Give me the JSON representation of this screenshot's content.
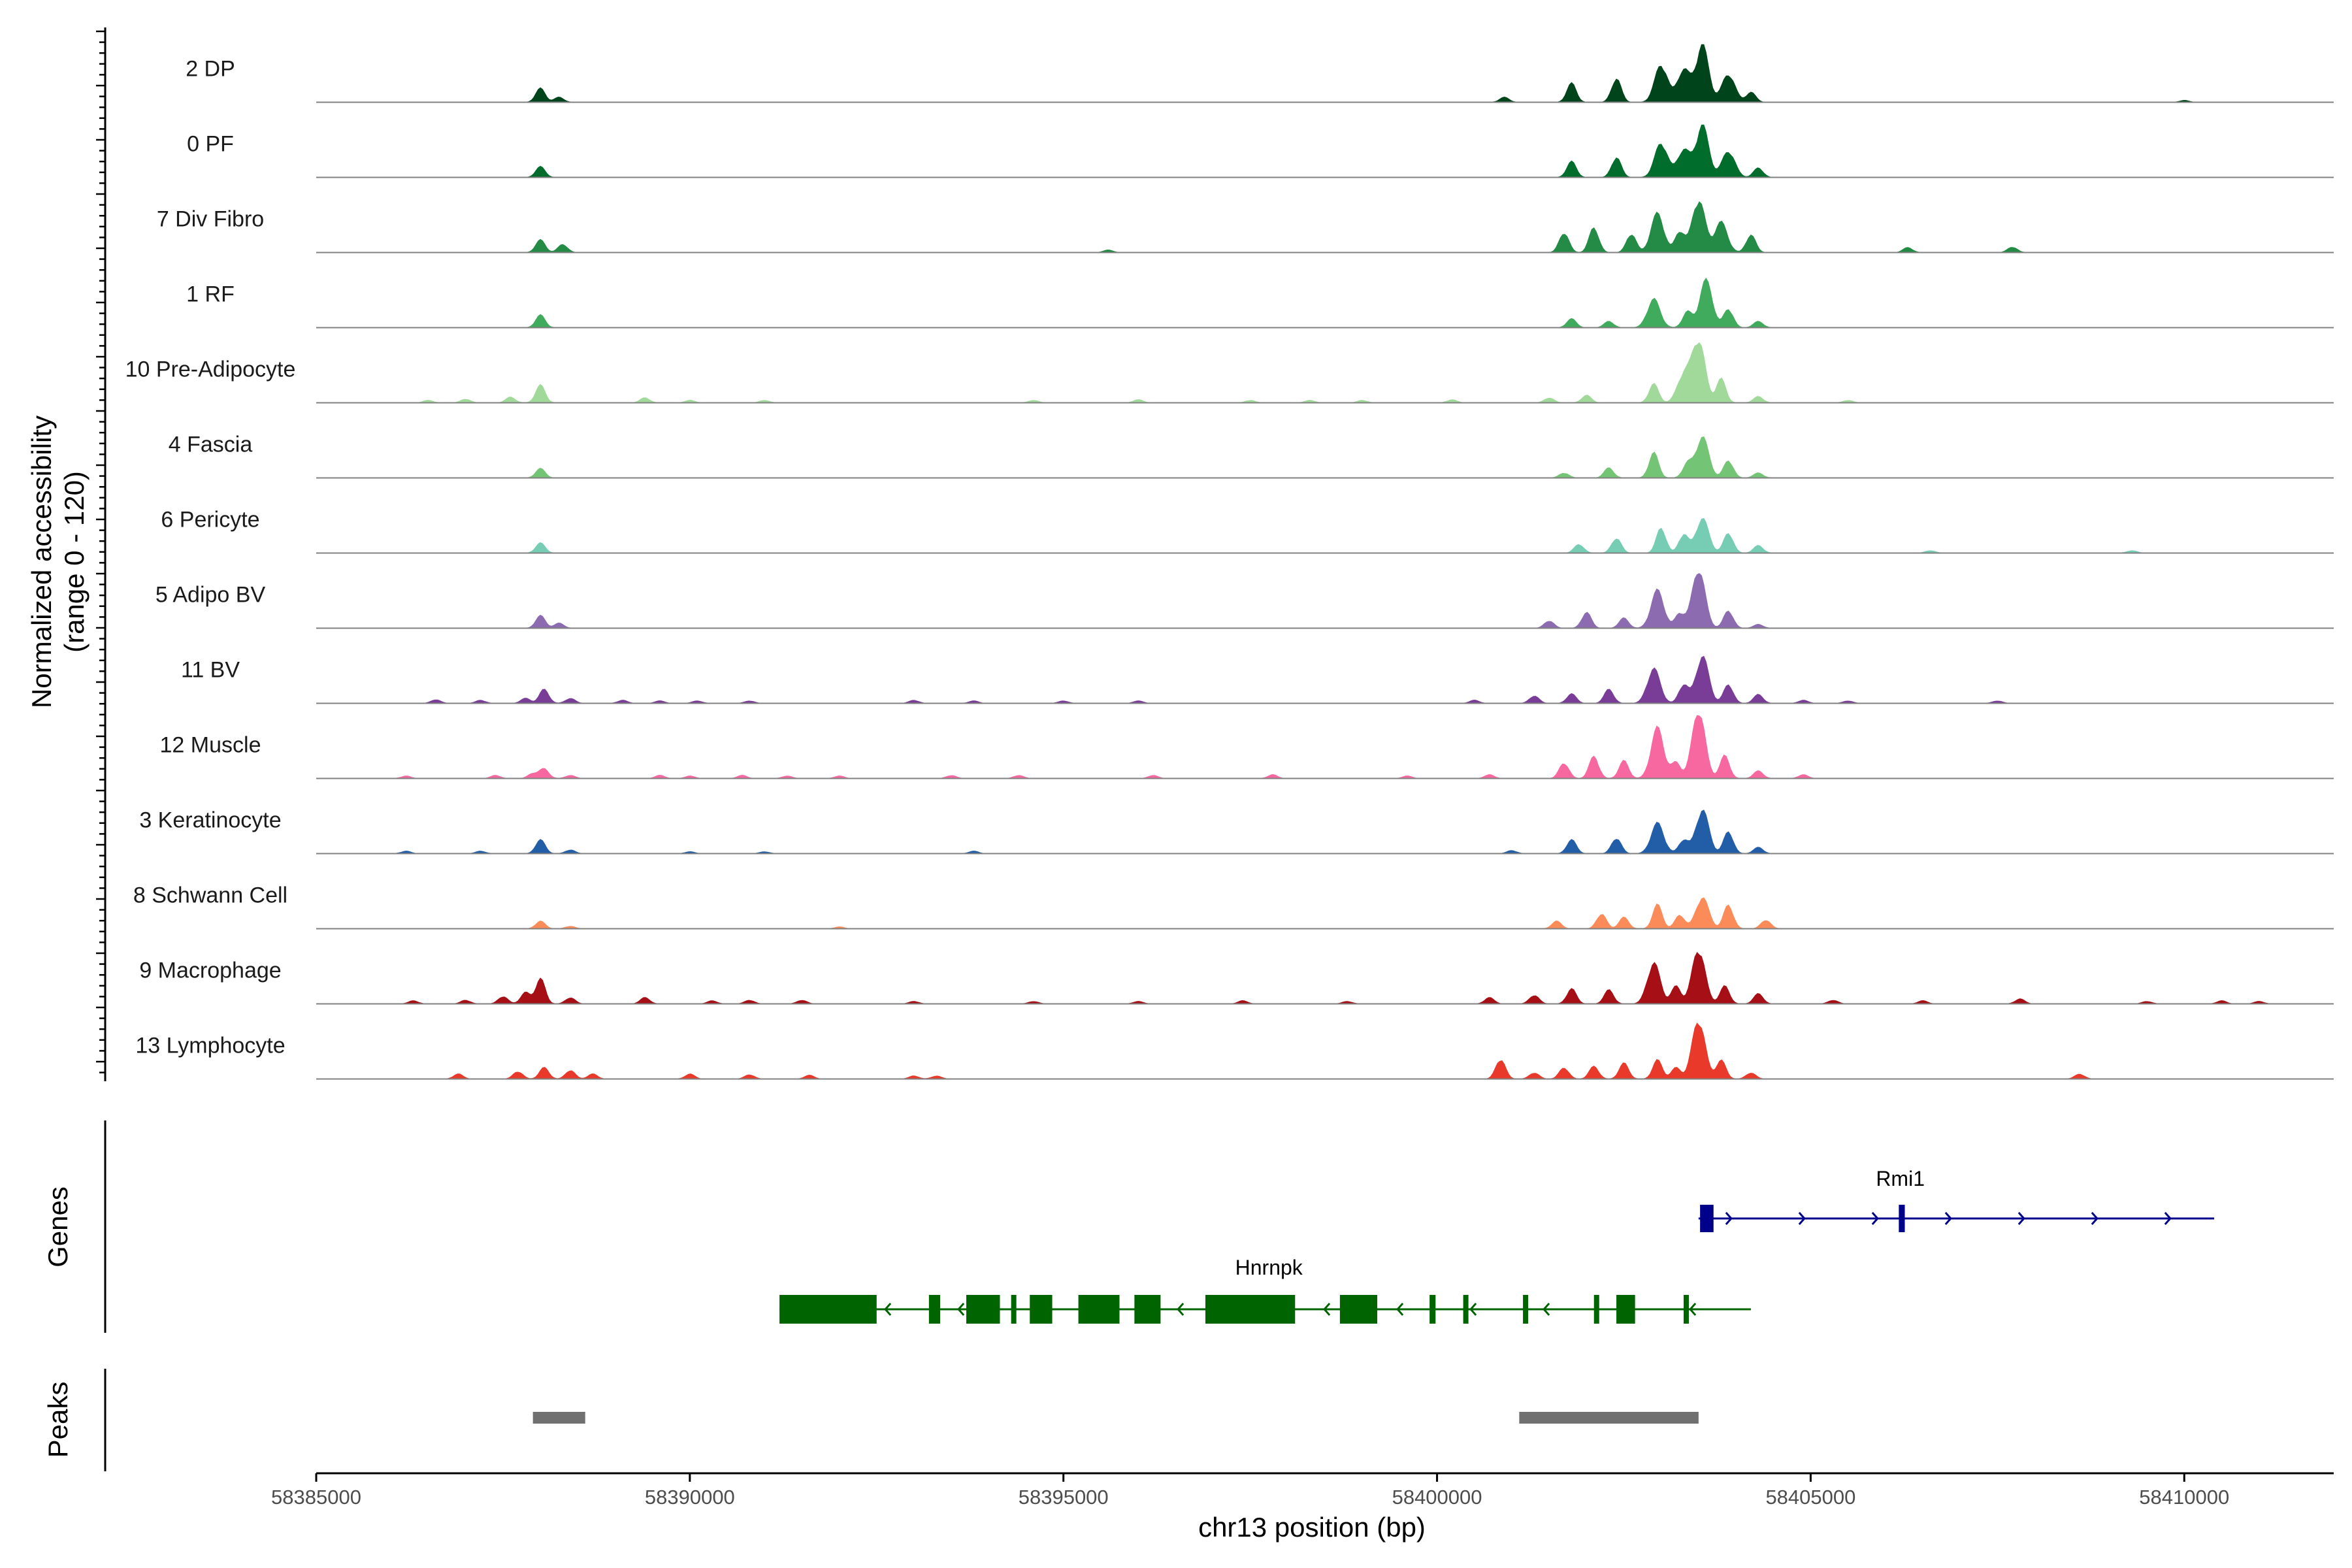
{
  "chart_data": {
    "type": "area",
    "title": "",
    "chromosome": "chr13",
    "xlabel": "chr13 position (bp)",
    "ylabel": "Normalized accessibility",
    "ylabel_range": "(range 0 - 120)",
    "xlim": [
      58385000,
      58412000
    ],
    "ylim": [
      0,
      120
    ],
    "x_ticks": [
      58385000,
      58390000,
      58395000,
      58400000,
      58405000,
      58410000
    ],
    "x_tick_labels": [
      "58385000",
      "58390000",
      "58395000",
      "58400000",
      "58405000",
      "58410000"
    ],
    "series": [
      {
        "name": "2 DP",
        "color": "#00441b",
        "peaks": [
          [
            58388000,
            22
          ],
          [
            58388250,
            8
          ],
          [
            58400900,
            8
          ],
          [
            58401800,
            30
          ],
          [
            58402400,
            38
          ],
          [
            58403000,
            60
          ],
          [
            58403300,
            52
          ],
          [
            58403550,
            90
          ],
          [
            58403900,
            45
          ],
          [
            58404200,
            16
          ],
          [
            58410000,
            3
          ]
        ]
      },
      {
        "name": "0 PF",
        "color": "#006d2c",
        "peaks": [
          [
            58388000,
            17
          ],
          [
            58401800,
            25
          ],
          [
            58402400,
            32
          ],
          [
            58403000,
            55
          ],
          [
            58403300,
            44
          ],
          [
            58403550,
            82
          ],
          [
            58403900,
            42
          ],
          [
            58404300,
            15
          ]
        ]
      },
      {
        "name": "7 Div Fibro",
        "color": "#238b45",
        "peaks": [
          [
            58388000,
            20
          ],
          [
            58388300,
            13
          ],
          [
            58395600,
            4
          ],
          [
            58401700,
            32
          ],
          [
            58402100,
            40
          ],
          [
            58402600,
            30
          ],
          [
            58402950,
            62
          ],
          [
            58403250,
            34
          ],
          [
            58403500,
            85
          ],
          [
            58403800,
            48
          ],
          [
            58404200,
            28
          ],
          [
            58406300,
            8
          ],
          [
            58407700,
            9
          ]
        ]
      },
      {
        "name": "1 RF",
        "color": "#41ab5d",
        "peaks": [
          [
            58388000,
            20
          ],
          [
            58401800,
            14
          ],
          [
            58402300,
            10
          ],
          [
            58402900,
            45
          ],
          [
            58403350,
            25
          ],
          [
            58403600,
            75
          ],
          [
            58403900,
            30
          ],
          [
            58404300,
            10
          ]
        ]
      },
      {
        "name": "10 Pre-Adipocyte",
        "color": "#a1d99b",
        "peaks": [
          [
            58386500,
            4
          ],
          [
            58387000,
            6
          ],
          [
            58387600,
            9
          ],
          [
            58388000,
            28
          ],
          [
            58389400,
            8
          ],
          [
            58390000,
            4
          ],
          [
            58391000,
            4
          ],
          [
            58394600,
            4
          ],
          [
            58396000,
            5
          ],
          [
            58397500,
            4
          ],
          [
            58398300,
            4
          ],
          [
            58399000,
            4
          ],
          [
            58400200,
            5
          ],
          [
            58401500,
            8
          ],
          [
            58402000,
            12
          ],
          [
            58402900,
            30
          ],
          [
            58403300,
            45
          ],
          [
            58403500,
            100
          ],
          [
            58403800,
            38
          ],
          [
            58404300,
            10
          ],
          [
            58405500,
            4
          ]
        ]
      },
      {
        "name": "4 Fascia",
        "color": "#74c476",
        "peaks": [
          [
            58388000,
            15
          ],
          [
            58401700,
            8
          ],
          [
            58402300,
            16
          ],
          [
            58402900,
            40
          ],
          [
            58403350,
            22
          ],
          [
            58403550,
            65
          ],
          [
            58403900,
            28
          ],
          [
            58404300,
            8
          ]
        ]
      },
      {
        "name": "6 Pericyte",
        "color": "#76cdb4",
        "peaks": [
          [
            58388000,
            16
          ],
          [
            58401900,
            14
          ],
          [
            58402400,
            24
          ],
          [
            58403000,
            40
          ],
          [
            58403300,
            30
          ],
          [
            58403550,
            55
          ],
          [
            58403900,
            32
          ],
          [
            58404300,
            12
          ],
          [
            58406600,
            4
          ],
          [
            58409300,
            4
          ]
        ]
      },
      {
        "name": "5 Adipo BV",
        "color": "#8c6bb1",
        "peaks": [
          [
            58388000,
            20
          ],
          [
            58388250,
            8
          ],
          [
            58401500,
            12
          ],
          [
            58402000,
            25
          ],
          [
            58402500,
            16
          ],
          [
            58402950,
            60
          ],
          [
            58403250,
            24
          ],
          [
            58403500,
            95
          ],
          [
            58403900,
            28
          ],
          [
            58404300,
            6
          ]
        ]
      },
      {
        "name": "11 BV",
        "color": "#7a3d97",
        "peaks": [
          [
            58386600,
            6
          ],
          [
            58387200,
            5
          ],
          [
            58387800,
            8
          ],
          [
            58388050,
            22
          ],
          [
            58388400,
            8
          ],
          [
            58389100,
            5
          ],
          [
            58389600,
            4
          ],
          [
            58390100,
            4
          ],
          [
            58390800,
            4
          ],
          [
            58393000,
            5
          ],
          [
            58393800,
            4
          ],
          [
            58395000,
            4
          ],
          [
            58396000,
            4
          ],
          [
            58400500,
            5
          ],
          [
            58401300,
            12
          ],
          [
            58401800,
            15
          ],
          [
            58402300,
            22
          ],
          [
            58402900,
            55
          ],
          [
            58403300,
            30
          ],
          [
            58403550,
            75
          ],
          [
            58403900,
            30
          ],
          [
            58404300,
            14
          ],
          [
            58404900,
            5
          ],
          [
            58405500,
            4
          ],
          [
            58407500,
            4
          ]
        ]
      },
      {
        "name": "12 Muscle",
        "color": "#f768a1",
        "peaks": [
          [
            58386200,
            4
          ],
          [
            58387400,
            5
          ],
          [
            58387900,
            8
          ],
          [
            58388050,
            15
          ],
          [
            58388400,
            5
          ],
          [
            58389600,
            5
          ],
          [
            58390000,
            4
          ],
          [
            58390700,
            5
          ],
          [
            58391300,
            4
          ],
          [
            58392000,
            4
          ],
          [
            58393500,
            5
          ],
          [
            58394400,
            5
          ],
          [
            58396200,
            5
          ],
          [
            58397800,
            6
          ],
          [
            58399600,
            4
          ],
          [
            58400700,
            6
          ],
          [
            58401700,
            25
          ],
          [
            58402100,
            35
          ],
          [
            58402500,
            28
          ],
          [
            58402950,
            80
          ],
          [
            58403200,
            25
          ],
          [
            58403500,
            110
          ],
          [
            58403850,
            36
          ],
          [
            58404300,
            12
          ],
          [
            58404900,
            6
          ]
        ]
      },
      {
        "name": "3 Keratinocyte",
        "color": "#225ea8",
        "peaks": [
          [
            58386200,
            4
          ],
          [
            58387200,
            4
          ],
          [
            58388000,
            22
          ],
          [
            58388400,
            6
          ],
          [
            58390000,
            3
          ],
          [
            58391000,
            3
          ],
          [
            58393800,
            4
          ],
          [
            58401000,
            5
          ],
          [
            58401800,
            22
          ],
          [
            58402400,
            25
          ],
          [
            58402950,
            48
          ],
          [
            58403300,
            22
          ],
          [
            58403550,
            70
          ],
          [
            58403900,
            35
          ],
          [
            58404300,
            10
          ]
        ]
      },
      {
        "name": "8 Schwann Cell",
        "color": "#fb8c5a",
        "peaks": [
          [
            58388000,
            12
          ],
          [
            58388400,
            4
          ],
          [
            58392000,
            3
          ],
          [
            58401600,
            12
          ],
          [
            58402200,
            24
          ],
          [
            58402500,
            18
          ],
          [
            58402950,
            38
          ],
          [
            58403250,
            22
          ],
          [
            58403550,
            50
          ],
          [
            58403900,
            38
          ],
          [
            58404400,
            14
          ]
        ]
      },
      {
        "name": "9 Macrophage",
        "color": "#a50f15",
        "peaks": [
          [
            58386300,
            5
          ],
          [
            58387000,
            6
          ],
          [
            58387500,
            12
          ],
          [
            58387800,
            18
          ],
          [
            58388000,
            40
          ],
          [
            58388400,
            10
          ],
          [
            58389400,
            10
          ],
          [
            58390300,
            5
          ],
          [
            58390800,
            6
          ],
          [
            58391500,
            6
          ],
          [
            58393000,
            4
          ],
          [
            58394600,
            4
          ],
          [
            58396000,
            4
          ],
          [
            58397400,
            5
          ],
          [
            58398800,
            4
          ],
          [
            58400700,
            10
          ],
          [
            58401300,
            14
          ],
          [
            58401800,
            24
          ],
          [
            58402300,
            22
          ],
          [
            58402900,
            65
          ],
          [
            58403200,
            28
          ],
          [
            58403500,
            88
          ],
          [
            58403850,
            28
          ],
          [
            58404300,
            16
          ],
          [
            58405300,
            6
          ],
          [
            58406500,
            5
          ],
          [
            58407800,
            8
          ],
          [
            58409500,
            4
          ],
          [
            58410500,
            5
          ],
          [
            58411000,
            4
          ]
        ]
      },
      {
        "name": "13 Lymphocyte",
        "color": "#e8392b",
        "peaks": [
          [
            58386900,
            8
          ],
          [
            58387700,
            12
          ],
          [
            58388050,
            18
          ],
          [
            58388400,
            14
          ],
          [
            58388700,
            8
          ],
          [
            58390000,
            8
          ],
          [
            58390800,
            7
          ],
          [
            58391600,
            6
          ],
          [
            58393000,
            5
          ],
          [
            58393300,
            5
          ],
          [
            58400850,
            32
          ],
          [
            58401300,
            10
          ],
          [
            58401700,
            18
          ],
          [
            58402100,
            20
          ],
          [
            58402500,
            25
          ],
          [
            58402950,
            30
          ],
          [
            58403200,
            18
          ],
          [
            58403500,
            95
          ],
          [
            58403800,
            30
          ],
          [
            58404200,
            10
          ],
          [
            58408600,
            8
          ]
        ]
      }
    ],
    "genes": [
      {
        "name": "Rmi1",
        "color": "#00008b",
        "strand": "+",
        "start": 58403500,
        "end": 58410400,
        "exons": [
          [
            58403520,
            58403700
          ],
          [
            58406180,
            58406260
          ]
        ]
      },
      {
        "name": "Hnrnpk",
        "color": "#006400",
        "strand": "-",
        "start": 58391200,
        "end": 58404200,
        "exons": [
          [
            58391200,
            58392500
          ],
          [
            58393200,
            58393350
          ],
          [
            58393700,
            58394150
          ],
          [
            58394300,
            58394350
          ],
          [
            58394550,
            58394850
          ],
          [
            58395200,
            58395750
          ],
          [
            58395950,
            58396300
          ],
          [
            58396900,
            58398100
          ],
          [
            58398700,
            58399200
          ],
          [
            58399900,
            58399980
          ],
          [
            58400350,
            58400400
          ],
          [
            58401150,
            58401200
          ],
          [
            58402100,
            58402150
          ],
          [
            58402400,
            58402650
          ],
          [
            58403300,
            58403350
          ]
        ]
      }
    ],
    "peaks_track": [
      [
        58387900,
        58388600
      ],
      [
        58401100,
        58403500
      ]
    ]
  },
  "panels": {
    "genes_label": "Genes",
    "peaks_label": "Peaks"
  }
}
